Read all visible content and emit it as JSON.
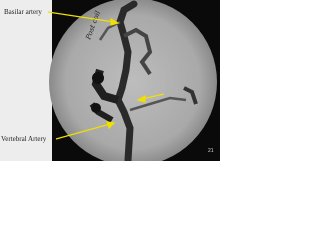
{
  "labels": {
    "basilar": "Basilar artery",
    "vertebral": "Vertebral Artery"
  },
  "handwriting": "Post coil",
  "slide_number": "21"
}
